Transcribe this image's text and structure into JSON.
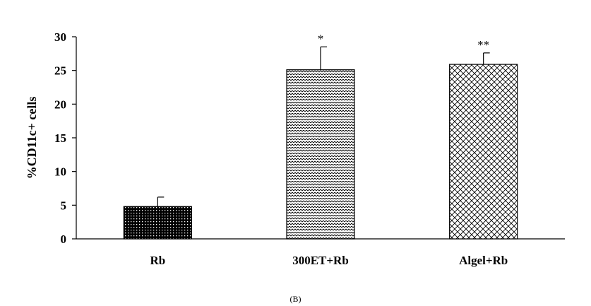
{
  "chart_data": {
    "type": "bar",
    "categories": [
      "Rb",
      "300ET+Rb",
      "Algel+Rb"
    ],
    "values": [
      4.8,
      25.1,
      25.9
    ],
    "error": [
      1.4,
      3.4,
      1.7
    ],
    "significance": [
      "",
      "*",
      "**"
    ],
    "ylabel": "%CD11c+ cells",
    "xlabel": "",
    "ylim": [
      0,
      30
    ],
    "yticks": [
      0,
      5,
      10,
      15,
      20,
      25,
      30
    ],
    "grid": false,
    "legend": "none",
    "patterns": [
      "dots",
      "zigzag",
      "crosshatch"
    ]
  },
  "panel_label": "(B)"
}
